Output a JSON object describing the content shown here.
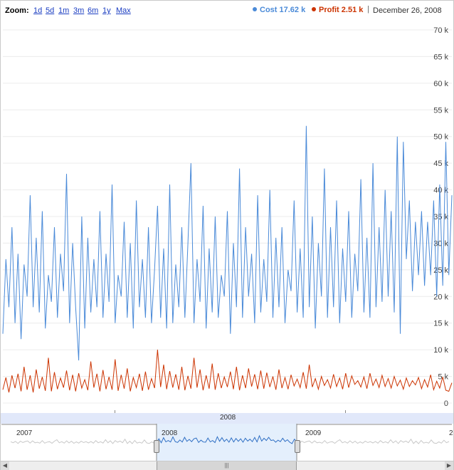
{
  "toolbar": {
    "zoom_label": "Zoom:",
    "zoom_options": [
      "1d",
      "5d",
      "1m",
      "3m",
      "6m",
      "1y",
      "Max"
    ],
    "legend": [
      {
        "label": "Cost 17.62 k",
        "color": "#4a8ad8"
      },
      {
        "label": "Profit 2.51 k",
        "color": "#cc3300"
      }
    ],
    "separator": "|",
    "date": "December 26, 2008"
  },
  "axis": {
    "year_label": "2008"
  },
  "navigator": {
    "years": [
      "2007",
      "2008",
      "2009",
      "2"
    ],
    "scroll_left": "◀",
    "scroll_right": "▶",
    "thumb_grip": "|||"
  },
  "chart_data": {
    "type": "line",
    "x_period": "2007-12 to 2009-01 (daily)",
    "ylim": [
      0,
      70000
    ],
    "y_ticks": [
      "0",
      "5 k",
      "10 k",
      "15 k",
      "20 k",
      "25 k",
      "30 k",
      "35 k",
      "40 k",
      "45 k",
      "50 k",
      "55 k",
      "60 k",
      "65 k",
      "70 k"
    ],
    "grid": true,
    "series": [
      {
        "name": "Cost",
        "color": "#4a8ad8",
        "values": [
          13000,
          27000,
          18000,
          33000,
          15000,
          28000,
          12000,
          26000,
          20000,
          39000,
          18000,
          31000,
          17000,
          36000,
          14000,
          24000,
          19000,
          33000,
          16000,
          28000,
          21000,
          43000,
          15000,
          30000,
          18000,
          8000,
          35000,
          14000,
          31000,
          17000,
          27000,
          18000,
          36000,
          16000,
          28000,
          19000,
          41000,
          15000,
          24000,
          20000,
          34000,
          16000,
          30000,
          14000,
          38000,
          18000,
          27000,
          16000,
          33000,
          15000,
          25000,
          37000,
          16000,
          29000,
          14000,
          41000,
          15000,
          26000,
          18000,
          33000,
          16000,
          30000,
          45000,
          15000,
          27000,
          19000,
          37000,
          14000,
          29000,
          17000,
          35000,
          16000,
          24000,
          20000,
          36000,
          13000,
          30000,
          18000,
          44000,
          16000,
          33000,
          20000,
          28000,
          15000,
          39000,
          17000,
          27000,
          19000,
          40000,
          16000,
          31000,
          18000,
          33000,
          15000,
          25000,
          21000,
          38000,
          17000,
          29000,
          16000,
          52000,
          18000,
          35000,
          14000,
          30000,
          20000,
          44000,
          16000,
          33000,
          18000,
          38000,
          15000,
          29000,
          19000,
          36000,
          16000,
          28000,
          21000,
          42000,
          17000,
          31000,
          16000,
          45000,
          18000,
          33000,
          19000,
          40000,
          20000,
          36000,
          17000,
          50000,
          13000,
          49000,
          27000,
          38000,
          21000,
          34000,
          24000,
          36000,
          22000,
          34000,
          24000,
          38000,
          20000,
          41000,
          22000,
          49000,
          24000,
          39000
        ],
        "approximate": true
      },
      {
        "name": "Profit",
        "color": "#cc3300",
        "values": [
          2500,
          4800,
          2000,
          5200,
          2800,
          5500,
          2200,
          6800,
          2500,
          5200,
          2000,
          6300,
          2700,
          4900,
          2300,
          8500,
          2200,
          5800,
          2600,
          4700,
          2900,
          6100,
          2400,
          5300,
          2200,
          5600,
          2800,
          4400,
          2400,
          7800,
          2900,
          5500,
          2200,
          6200,
          2600,
          4900,
          2500,
          8200,
          2300,
          5300,
          2700,
          6500,
          2200,
          4800,
          2900,
          5500,
          2300,
          5900,
          2500,
          4600,
          2800,
          10000,
          3000,
          7200,
          2600,
          6000,
          2900,
          5400,
          2500,
          6800,
          2400,
          5100,
          2700,
          8500,
          2900,
          6300,
          2400,
          5200,
          2700,
          7400,
          2500,
          5600,
          2800,
          4900,
          3000,
          5900,
          2600,
          6800,
          2400,
          5200,
          2800,
          6500,
          3100,
          5400,
          2600,
          6100,
          2700,
          5700,
          3000,
          5000,
          2500,
          6300,
          2800,
          4800,
          2600,
          5300,
          3200,
          4500,
          2900,
          5800,
          2700,
          7200,
          3000,
          4600,
          2600,
          5000,
          3300,
          4400,
          2800,
          5400,
          3100,
          4700,
          2600,
          5600,
          2900,
          5100,
          3500,
          4200,
          3000,
          4900,
          2700,
          5600,
          3300,
          4500,
          2900,
          5200,
          3100,
          4600,
          2800,
          5000,
          3200,
          4300,
          2600,
          4700,
          3100,
          4200,
          3400,
          4800,
          2700,
          4400,
          3000,
          5300,
          2500,
          4100,
          2800,
          4900,
          2400,
          2200,
          3800
        ]
      }
    ]
  }
}
